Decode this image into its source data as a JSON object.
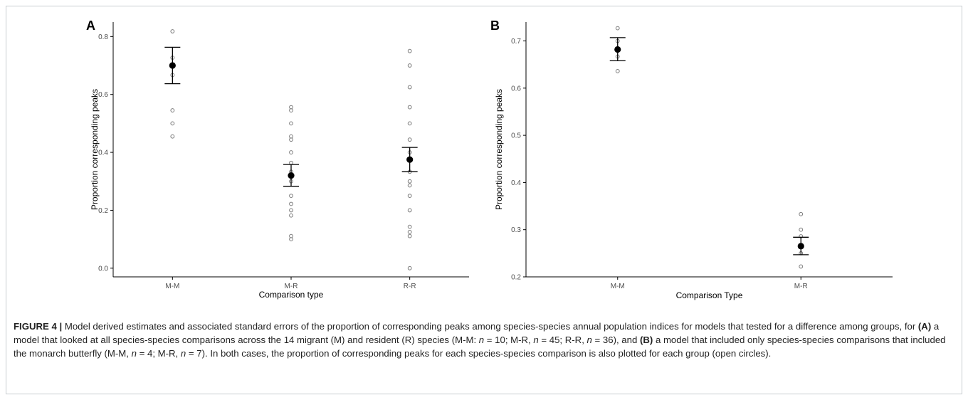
{
  "caption": {
    "label": "FIGURE 4 |",
    "segments": [
      {
        "t": " Model derived estimates and associated standard errors of the proportion of corresponding peaks among species-species annual population indices for models that tested for a difference among groups, for "
      },
      {
        "t": "(A)",
        "b": true
      },
      {
        "t": " a model that looked at all species-species comparisons across the 14 migrant (M) and resident (R) species (M-M: "
      },
      {
        "t": "n",
        "i": true
      },
      {
        "t": " = 10; M-R, "
      },
      {
        "t": "n",
        "i": true
      },
      {
        "t": " = 45; R-R, "
      },
      {
        "t": "n",
        "i": true
      },
      {
        "t": " = 36), and "
      },
      {
        "t": "(B)",
        "b": true
      },
      {
        "t": " a model that included only species-species comparisons that included the monarch butterfly (M-M, "
      },
      {
        "t": "n",
        "i": true
      },
      {
        "t": " = 4; M-R, "
      },
      {
        "t": "n",
        "i": true
      },
      {
        "t": " = 7). In both cases, the proportion of corresponding peaks for each species-species comparison is also plotted for each group (open circles)."
      }
    ]
  },
  "chart_data": [
    {
      "panel": "A",
      "type": "scatter",
      "title": "",
      "xlabel": "Comparison type",
      "ylabel": "Proportion corresponding peaks",
      "categories": [
        "M-M",
        "M-R",
        "R-R"
      ],
      "ylim": [
        -0.03,
        0.85
      ],
      "yticks": [
        0.0,
        0.2,
        0.4,
        0.6,
        0.8
      ],
      "ytick_labels": [
        "0.0",
        "0.2",
        "0.4",
        "0.6",
        "0.8"
      ],
      "grid": false,
      "estimates": [
        {
          "category": "M-M",
          "mean": 0.7,
          "lower": 0.637,
          "upper": 0.763
        },
        {
          "category": "M-R",
          "mean": 0.32,
          "lower": 0.283,
          "upper": 0.358
        },
        {
          "category": "R-R",
          "mean": 0.375,
          "lower": 0.333,
          "upper": 0.417
        }
      ],
      "observations": [
        {
          "category": "M-M",
          "values": [
            0.818,
            0.727,
            0.7,
            0.667,
            0.545,
            0.5,
            0.455
          ]
        },
        {
          "category": "M-R",
          "values": [
            0.556,
            0.545,
            0.5,
            0.455,
            0.444,
            0.4,
            0.364,
            0.333,
            0.3,
            0.25,
            0.222,
            0.2,
            0.182,
            0.111,
            0.1
          ]
        },
        {
          "category": "R-R",
          "values": [
            0.75,
            0.7,
            0.625,
            0.556,
            0.5,
            0.444,
            0.4,
            0.375,
            0.333,
            0.3,
            0.286,
            0.25,
            0.2,
            0.143,
            0.125,
            0.111,
            0.0
          ]
        }
      ]
    },
    {
      "panel": "B",
      "type": "scatter",
      "title": "",
      "xlabel": "Comparison Type",
      "ylabel": "Proportion corresponding peaks",
      "categories": [
        "M-M",
        "M-R"
      ],
      "ylim": [
        0.2,
        0.74
      ],
      "yticks": [
        0.2,
        0.3,
        0.4,
        0.5,
        0.6,
        0.7
      ],
      "ytick_labels": [
        "0.2",
        "0.3",
        "0.4",
        "0.5",
        "0.6",
        "0.7"
      ],
      "grid": false,
      "estimates": [
        {
          "category": "M-M",
          "mean": 0.682,
          "lower": 0.658,
          "upper": 0.707
        },
        {
          "category": "M-R",
          "mean": 0.265,
          "lower": 0.247,
          "upper": 0.284
        }
      ],
      "observations": [
        {
          "category": "M-M",
          "values": [
            0.727,
            0.7,
            0.667,
            0.636
          ]
        },
        {
          "category": "M-R",
          "values": [
            0.333,
            0.3,
            0.286,
            0.25,
            0.222
          ]
        }
      ]
    }
  ]
}
